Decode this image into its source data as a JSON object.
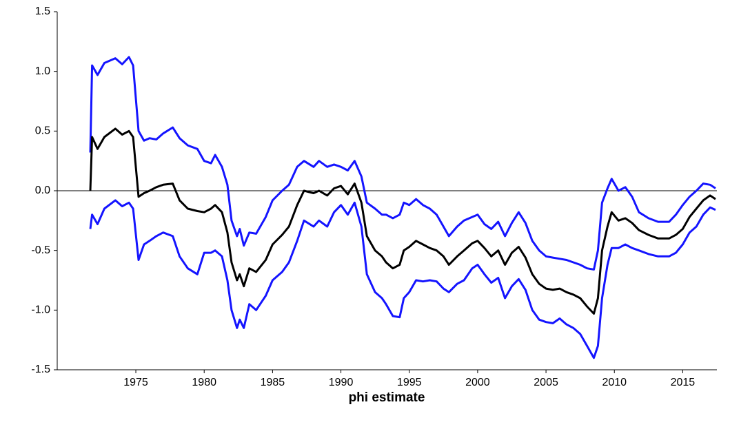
{
  "chart_data": {
    "type": "line",
    "x_label": "phi estimate",
    "x": [
      1971.67,
      1971.8,
      1972.2,
      1972.7,
      1973.5,
      1974.0,
      1974.5,
      1974.8,
      1975.2,
      1975.6,
      1976.0,
      1976.5,
      1977.0,
      1977.7,
      1978.2,
      1978.8,
      1979.5,
      1980.0,
      1980.5,
      1980.8,
      1981.3,
      1981.7,
      1982.0,
      1982.4,
      1982.6,
      1982.9,
      1983.3,
      1983.8,
      1984.5,
      1985.0,
      1985.7,
      1986.2,
      1986.8,
      1987.3,
      1988.0,
      1988.4,
      1989.0,
      1989.5,
      1990.0,
      1990.5,
      1991.0,
      1991.5,
      1991.9,
      1992.5,
      1993.0,
      1993.3,
      1993.8,
      1994.3,
      1994.6,
      1995.0,
      1995.5,
      1996.0,
      1996.5,
      1997.0,
      1997.5,
      1997.9,
      1998.5,
      1999.0,
      1999.6,
      2000.0,
      2000.5,
      2001.0,
      2001.5,
      2002.0,
      2002.5,
      2003.0,
      2003.5,
      2004.0,
      2004.5,
      2005.0,
      2005.5,
      2006.0,
      2006.5,
      2007.0,
      2007.5,
      2008.0,
      2008.5,
      2008.8,
      2009.1,
      2009.5,
      2009.8,
      2010.3,
      2010.8,
      2011.3,
      2011.8,
      2012.5,
      2013.2,
      2014.0,
      2014.5,
      2015.0,
      2015.5,
      2016.0,
      2016.5,
      2017.0,
      2017.4
    ],
    "series": [
      {
        "color": "#1414ff",
        "values": [
          0.32,
          1.05,
          0.97,
          1.07,
          1.11,
          1.06,
          1.12,
          1.05,
          0.5,
          0.42,
          0.44,
          0.43,
          0.48,
          0.53,
          0.44,
          0.38,
          0.35,
          0.25,
          0.23,
          0.3,
          0.2,
          0.05,
          -0.25,
          -0.38,
          -0.32,
          -0.46,
          -0.35,
          -0.36,
          -0.22,
          -0.08,
          0.0,
          0.05,
          0.2,
          0.25,
          0.2,
          0.25,
          0.2,
          0.22,
          0.2,
          0.17,
          0.25,
          0.12,
          -0.1,
          -0.15,
          -0.2,
          -0.2,
          -0.23,
          -0.2,
          -0.1,
          -0.12,
          -0.07,
          -0.12,
          -0.15,
          -0.2,
          -0.3,
          -0.38,
          -0.3,
          -0.25,
          -0.22,
          -0.2,
          -0.28,
          -0.32,
          -0.26,
          -0.38,
          -0.27,
          -0.18,
          -0.27,
          -0.42,
          -0.5,
          -0.55,
          -0.56,
          -0.57,
          -0.58,
          -0.6,
          -0.62,
          -0.65,
          -0.66,
          -0.5,
          -0.1,
          0.02,
          0.1,
          0.0,
          0.03,
          -0.05,
          -0.18,
          -0.23,
          -0.26,
          -0.26,
          -0.2,
          -0.12,
          -0.05,
          0.0,
          0.06,
          0.05,
          0.02
        ]
      },
      {
        "color": "#1414ff",
        "values": [
          -0.32,
          -0.2,
          -0.28,
          -0.15,
          -0.08,
          -0.13,
          -0.1,
          -0.15,
          -0.58,
          -0.45,
          -0.42,
          -0.38,
          -0.35,
          -0.38,
          -0.55,
          -0.65,
          -0.7,
          -0.52,
          -0.52,
          -0.5,
          -0.55,
          -0.75,
          -1.0,
          -1.15,
          -1.08,
          -1.15,
          -0.95,
          -1.0,
          -0.88,
          -0.75,
          -0.68,
          -0.6,
          -0.42,
          -0.25,
          -0.3,
          -0.25,
          -0.3,
          -0.18,
          -0.12,
          -0.2,
          -0.1,
          -0.3,
          -0.7,
          -0.85,
          -0.9,
          -0.95,
          -1.05,
          -1.06,
          -0.9,
          -0.85,
          -0.75,
          -0.76,
          -0.75,
          -0.76,
          -0.82,
          -0.85,
          -0.78,
          -0.75,
          -0.65,
          -0.62,
          -0.7,
          -0.77,
          -0.73,
          -0.9,
          -0.8,
          -0.74,
          -0.83,
          -1.0,
          -1.08,
          -1.1,
          -1.11,
          -1.07,
          -1.12,
          -1.15,
          -1.2,
          -1.3,
          -1.4,
          -1.3,
          -0.9,
          -0.62,
          -0.48,
          -0.48,
          -0.45,
          -0.48,
          -0.5,
          -0.53,
          -0.55,
          -0.55,
          -0.52,
          -0.45,
          -0.35,
          -0.3,
          -0.2,
          -0.14,
          -0.16
        ]
      },
      {
        "color": "#000000",
        "values": [
          0.0,
          0.45,
          0.35,
          0.45,
          0.52,
          0.47,
          0.5,
          0.45,
          -0.05,
          -0.02,
          0.0,
          0.03,
          0.05,
          0.06,
          -0.08,
          -0.15,
          -0.17,
          -0.18,
          -0.15,
          -0.12,
          -0.18,
          -0.35,
          -0.6,
          -0.75,
          -0.7,
          -0.8,
          -0.65,
          -0.68,
          -0.58,
          -0.45,
          -0.37,
          -0.3,
          -0.12,
          0.0,
          -0.02,
          0.0,
          -0.04,
          0.02,
          0.04,
          -0.03,
          0.06,
          -0.1,
          -0.38,
          -0.5,
          -0.55,
          -0.6,
          -0.65,
          -0.62,
          -0.5,
          -0.47,
          -0.42,
          -0.45,
          -0.48,
          -0.5,
          -0.55,
          -0.62,
          -0.55,
          -0.5,
          -0.44,
          -0.42,
          -0.48,
          -0.55,
          -0.5,
          -0.62,
          -0.52,
          -0.47,
          -0.56,
          -0.7,
          -0.78,
          -0.82,
          -0.83,
          -0.82,
          -0.85,
          -0.87,
          -0.9,
          -0.97,
          -1.03,
          -0.9,
          -0.5,
          -0.3,
          -0.18,
          -0.25,
          -0.23,
          -0.27,
          -0.33,
          -0.37,
          -0.4,
          -0.4,
          -0.37,
          -0.32,
          -0.22,
          -0.15,
          -0.08,
          -0.04,
          -0.07
        ]
      }
    ],
    "xlim": [
      1969.25,
      2017.5
    ],
    "xticks": [
      1975,
      1980,
      1985,
      1990,
      1995,
      2000,
      2005,
      2010,
      2015
    ],
    "ylim": [
      -1.5,
      1.5
    ],
    "yticks": [
      -1.5,
      {
        "value": -1,
        "label": "-1.0"
      },
      -0.5,
      {
        "value": 0,
        "label": "0.0"
      },
      0.5,
      {
        "value": 1,
        "label": "1.0"
      },
      1.5
    ],
    "zero_line": true
  }
}
